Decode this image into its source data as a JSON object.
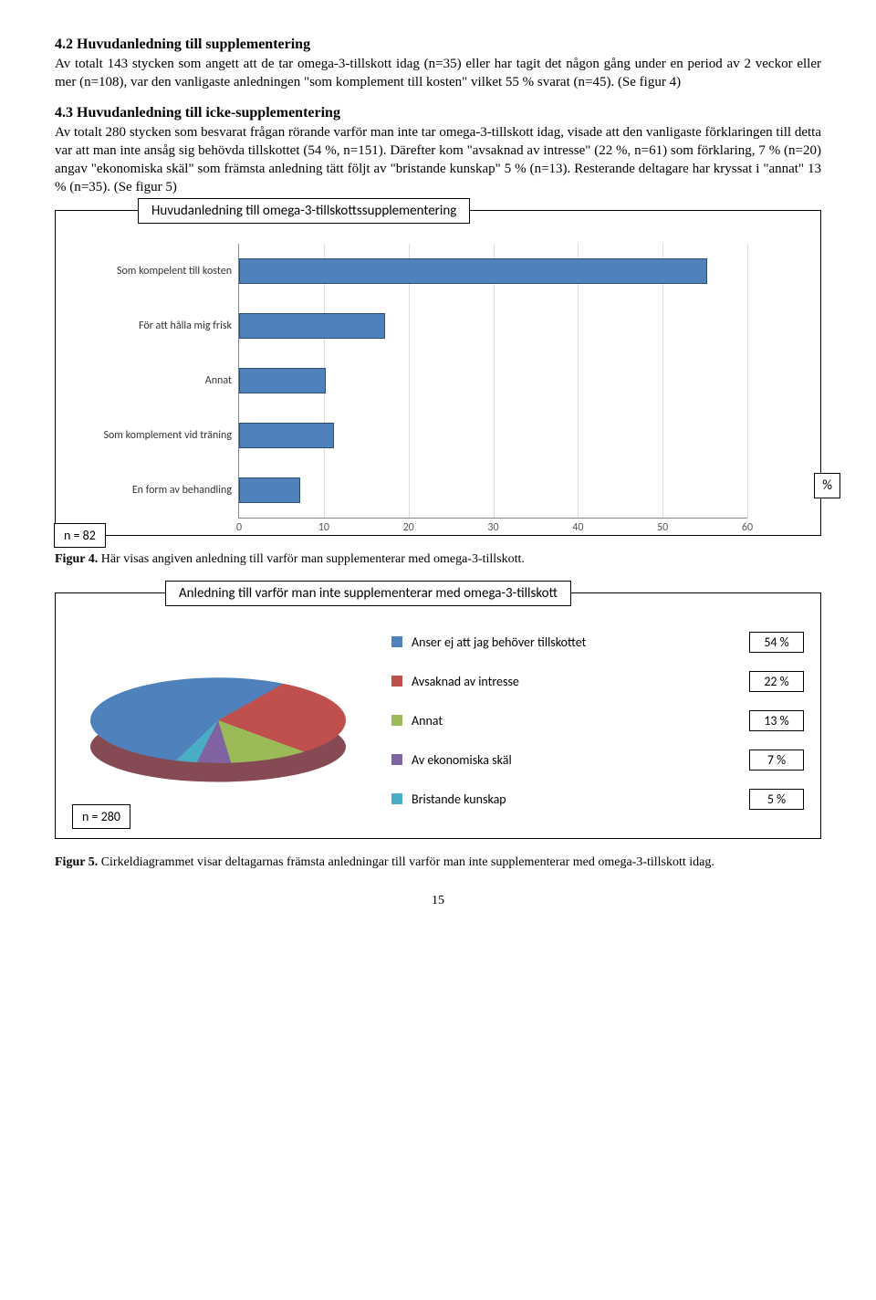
{
  "section42": {
    "heading": "4.2 Huvudanledning till supplementering",
    "para": "Av totalt 143 stycken som angett att de tar omega-3-tillskott idag (n=35) eller har tagit det någon gång under en period av 2 veckor eller mer (n=108), var den vanligaste anledningen \"som komplement till kosten\" vilket 55 % svarat (n=45). (Se figur 4)"
  },
  "section43": {
    "heading": "4.3 Huvudanledning till icke-supplementering",
    "para": "Av totalt 280 stycken som besvarat frågan rörande varför man inte tar omega-3-tillskott idag, visade att den vanligaste förklaringen till detta var att man inte ansåg sig behövda tillskottet (54 %, n=151). Därefter kom \"avsaknad av intresse\" (22 %, n=61) som förklaring, 7 % (n=20) angav \"ekonomiska skäl\" som främsta anledning tätt följt av \"bristande kunskap\" 5 % (n=13). Resterande deltagare har kryssat i \"annat\" 13 % (n=35). (Se figur 5)"
  },
  "chart1": {
    "title": "Huvudanledning till omega-3-tillskottssupplementering",
    "type": "bar-horizontal",
    "categories": [
      "Som kompelent till kosten",
      "För att hålla mig frisk",
      "Annat",
      "Som komplement vid träning",
      "En form av behandling"
    ],
    "values": [
      55,
      17,
      10,
      11,
      7
    ],
    "xmax": 60,
    "xtick_step": 10,
    "bar_color": "#4f81bd",
    "bar_border": "#2c4d75",
    "grid_color": "#dddddd",
    "axis_color": "#888888",
    "label_fontsize": 12,
    "percent_label": "%",
    "n_label": "n = 82"
  },
  "fig4": {
    "lead": "Figur 4.",
    "text": " Här visas angiven anledning till varför man supplementerar med omega-3-tillskott."
  },
  "chart2": {
    "title": "Anledning till varför man inte supplementerar med omega-3-tillskott",
    "type": "pie",
    "items": [
      {
        "label": "Anser ej att jag behöver tillskottet",
        "pct": "54 %",
        "color": "#4f81bd"
      },
      {
        "label": "Avsaknad av intresse",
        "pct": "22 %",
        "color": "#c0504d"
      },
      {
        "label": "Annat",
        "pct": "13 %",
        "color": "#9bbb59"
      },
      {
        "label": "Av ekonomiska skäl",
        "pct": "7 %",
        "color": "#8064a2"
      },
      {
        "label": "Bristande kunskap",
        "pct": "5 %",
        "color": "#4bacc6"
      }
    ],
    "n_label": "n = 280"
  },
  "fig5": {
    "lead": "Figur 5.",
    "text": " Cirkeldiagrammet visar deltagarnas främsta anledningar till varför man inte supplementerar med omega-3-tillskott idag."
  },
  "pagenum": "15"
}
